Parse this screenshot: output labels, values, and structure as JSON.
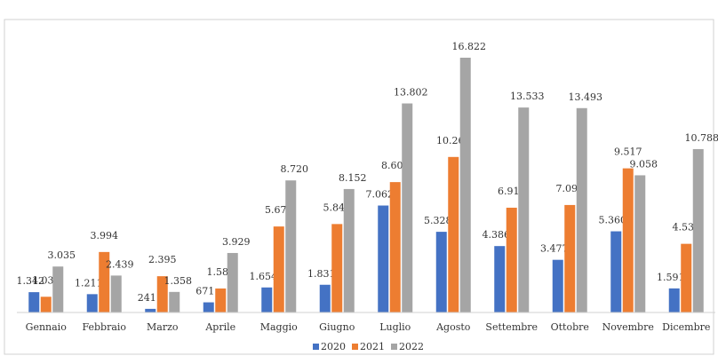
{
  "chart_data": {
    "type": "bar",
    "categories": [
      "Gennaio",
      "Febbraio",
      "Marzo",
      "Aprile",
      "Maggio",
      "Giugno",
      "Luglio",
      "Agosto",
      "Settembre",
      "Ottobre",
      "Novembre",
      "Dicembre"
    ],
    "series": [
      {
        "name": "2020",
        "color": "#4472c4",
        "values": [
          1342,
          1211,
          241,
          671,
          1654,
          1831,
          7062,
          5328,
          4386,
          3477,
          5360,
          1591
        ],
        "value_labels": [
          "1.342",
          "1.211",
          "241",
          "671",
          "1.654",
          "1.831",
          "7.062",
          "5.328",
          "4.386",
          "3.477",
          "5.360",
          "1.591"
        ]
      },
      {
        "name": "2021",
        "color": "#ed7d31",
        "values": [
          1039,
          3994,
          2395,
          1585,
          5679,
          5840,
          8609,
          10269,
          6919,
          7097,
          9517,
          4534
        ],
        "value_labels": [
          "1.039",
          "3.994",
          "2.395",
          "1.585",
          "5.679",
          "5.840",
          "8.609",
          "10.269",
          "6.919",
          "7.097",
          "9.517",
          "4.534"
        ]
      },
      {
        "name": "2022",
        "color": "#a5a5a5",
        "values": [
          3035,
          2439,
          1358,
          3929,
          8720,
          8152,
          13802,
          16822,
          13533,
          13493,
          9058,
          10788
        ],
        "value_labels": [
          "3.035",
          "2.439",
          "1.358",
          "3.929",
          "8.720",
          "8.152",
          "13.802",
          "16.822",
          "13.533",
          "13.493",
          "9.058",
          "10.788"
        ]
      }
    ],
    "legend": "bottom"
  }
}
